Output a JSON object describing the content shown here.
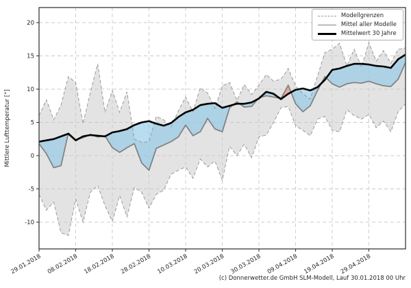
{
  "figure": {
    "footer": "(c) Donnerwetter.de GmbH SLM-Modell, Lauf 30.01.2018 00 Uhr"
  },
  "legend": {
    "items": [
      {
        "label": "Modellgrenzen",
        "style": "dashed"
      },
      {
        "label": "Mittel aller Modelle",
        "style": "solid-gray"
      },
      {
        "label": "Mittelwert 30 Jahre",
        "style": "thick-black"
      }
    ]
  },
  "chart_data": {
    "type": "area",
    "title": "",
    "xlabel": "",
    "ylabel": "Mittlere Lufttemperatur [°]",
    "grid": true,
    "legend_position": "upper right",
    "x_tick_labels": [
      "29.01.2018",
      "08.02.2018",
      "18.02.2018",
      "28.02.2018",
      "10.03.2018",
      "20.03.2018",
      "30.03.2018",
      "09.04.2018",
      "19.04.2018",
      "29.04.2018"
    ],
    "x_tick_days": [
      0,
      10,
      20,
      30,
      40,
      50,
      60,
      70,
      80,
      90
    ],
    "y_ticks": [
      20,
      15,
      10,
      5,
      0,
      -5,
      -10
    ],
    "x_range_days": [
      0,
      100
    ],
    "y_range": [
      -14.0,
      22.3
    ],
    "days_step": 2,
    "series": {
      "model_max": [
        6.0,
        8.4,
        5.4,
        7.6,
        11.9,
        11.0,
        4.8,
        9.5,
        13.8,
        6.5,
        9.8,
        6.5,
        9.6,
        2.5,
        2.0,
        2.1,
        5.9,
        5.4,
        4.3,
        6.7,
        8.8,
        6.6,
        10.2,
        9.4,
        7.1,
        10.5,
        11.0,
        8.3,
        10.7,
        9.2,
        10.6,
        12.2,
        11.2,
        11.5,
        13.1,
        10.5,
        9.3,
        8.5,
        12.0,
        15.5,
        16.0,
        16.9,
        13.5,
        16.0,
        13.3,
        17.0,
        14.2,
        15.8,
        13.9,
        16.0,
        16.2
      ],
      "model_min": [
        -5.8,
        -8.2,
        -7.0,
        -11.6,
        -12.0,
        -6.5,
        -10.0,
        -5.5,
        -4.5,
        -7.5,
        -9.9,
        -6.0,
        -9.2,
        -4.8,
        -5.5,
        -7.9,
        -5.8,
        -5.2,
        -2.8,
        -2.2,
        -1.7,
        -3.4,
        -0.5,
        -1.7,
        -0.8,
        -3.7,
        1.4,
        0.0,
        1.7,
        -0.3,
        2.8,
        3.1,
        5.0,
        7.2,
        7.4,
        4.5,
        3.8,
        3.0,
        5.5,
        5.9,
        3.8,
        3.6,
        6.9,
        6.0,
        5.5,
        6.2,
        4.2,
        5.2,
        3.6,
        6.6,
        7.8
      ],
      "model_mean": [
        1.8,
        0.3,
        -1.8,
        -1.5,
        3.4,
        2.4,
        2.7,
        3.2,
        2.8,
        3.0,
        1.2,
        0.5,
        1.2,
        1.8,
        -1.1,
        -2.2,
        1.1,
        1.6,
        2.1,
        2.8,
        4.6,
        3.0,
        3.6,
        5.6,
        4.0,
        3.6,
        7.2,
        8.1,
        7.3,
        7.4,
        8.7,
        9.0,
        8.8,
        8.6,
        10.6,
        7.8,
        6.6,
        7.5,
        9.8,
        11.9,
        10.8,
        10.3,
        10.8,
        11.0,
        10.9,
        11.2,
        10.8,
        10.5,
        10.4,
        11.5,
        14.0
      ],
      "climate_30yr": [
        2.1,
        2.3,
        2.5,
        2.9,
        3.3,
        2.3,
        2.9,
        3.1,
        3.0,
        2.9,
        3.5,
        3.7,
        4.0,
        4.6,
        5.0,
        5.2,
        4.8,
        4.5,
        4.9,
        5.8,
        6.5,
        6.9,
        7.6,
        7.8,
        7.9,
        7.2,
        7.5,
        7.8,
        7.8,
        8.0,
        8.6,
        9.6,
        9.3,
        8.5,
        9.3,
        9.9,
        10.1,
        9.8,
        10.3,
        11.4,
        12.9,
        13.1,
        13.5,
        13.8,
        13.8,
        13.7,
        13.5,
        13.4,
        13.2,
        14.5,
        15.2
      ]
    },
    "colors": {
      "band_fill": "#e3e3e3",
      "band_edge": "#9a9a9a",
      "below_fill": "#8cc6e7",
      "above_fill": "#e8654a",
      "mean_line": "#7f7f7f",
      "climate_line": "#000000",
      "grid": "#c8c8c8",
      "frame": "#3a3a3a",
      "text": "#262626"
    }
  }
}
